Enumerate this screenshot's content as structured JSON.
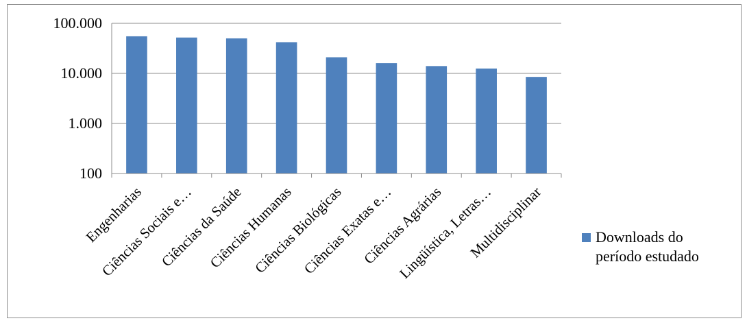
{
  "chart_data": {
    "type": "bar",
    "title": "",
    "xlabel": "",
    "ylabel": "",
    "yscale": "log",
    "ylim": [
      100,
      100000
    ],
    "yticks": [
      100,
      1000,
      10000,
      100000
    ],
    "ytick_labels": [
      "100",
      "1.000",
      "10.000",
      "100.000"
    ],
    "grid": true,
    "legend_position": "right",
    "categories": [
      "Engenharias",
      "Ciências Sociais e…",
      "Ciências da Saúde",
      "Ciências Humanas",
      "Ciências Biológicas",
      "Ciências Exatas e…",
      "Ciências Agrárias",
      "Lingüística, Letras…",
      "Multidisciplinar"
    ],
    "series": [
      {
        "name": "Downloads do período estudado",
        "color": "#4f81bd",
        "values": [
          55000,
          52000,
          50000,
          42000,
          21000,
          16000,
          14000,
          12500,
          8500
        ]
      }
    ]
  }
}
